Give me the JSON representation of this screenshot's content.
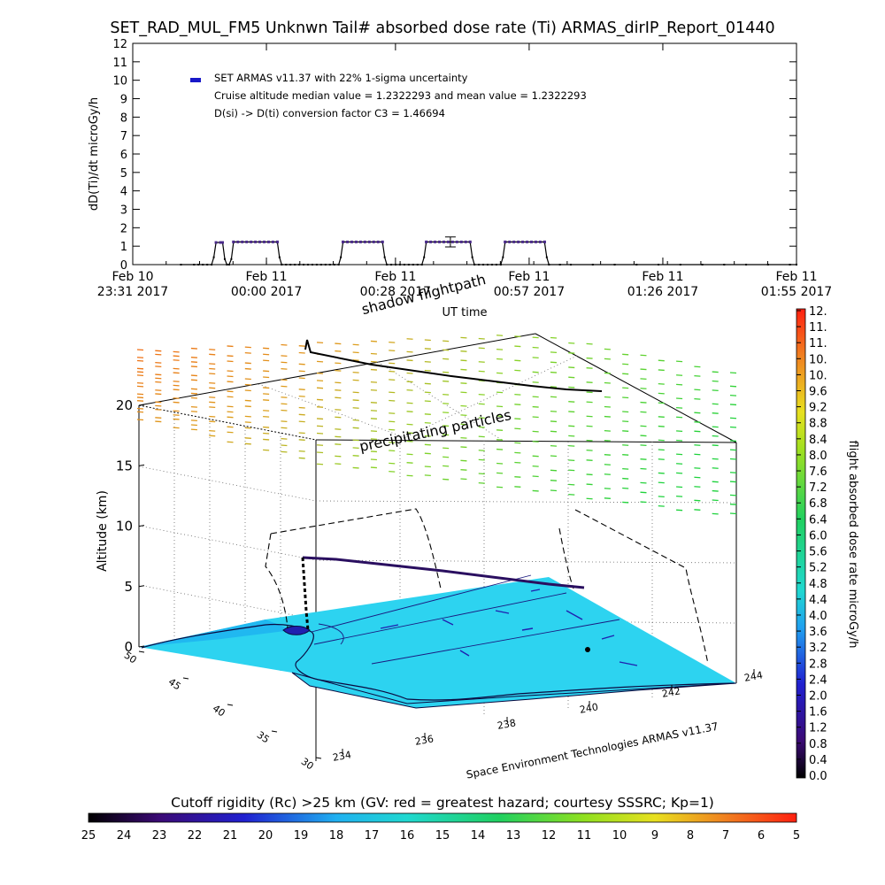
{
  "title": "SET_RAD_MUL_FM5 Unknwn Tail#  absorbed dose rate (Ti) ARMAS_dirIP_Report_01440",
  "chart_data": [
    {
      "type": "line",
      "ylabel": "dD(Ti)/dt microGy/h",
      "xlabel": "UT time",
      "ylim": [
        0,
        12
      ],
      "yticks": [
        "0",
        "1",
        "2",
        "3",
        "4",
        "5",
        "6",
        "7",
        "8",
        "9",
        "10",
        "11",
        "12"
      ],
      "xticks": [
        {
          "day": "Feb 10",
          "time": "23:31 2017"
        },
        {
          "day": "Feb 11",
          "time": "00:00 2017"
        },
        {
          "day": "Feb 11",
          "time": "00:28 2017"
        },
        {
          "day": "Feb 11",
          "time": "00:57 2017"
        },
        {
          "day": "Feb 11",
          "time": "01:26 2017"
        },
        {
          "day": "Feb 11",
          "time": "01:55 2017"
        }
      ],
      "xtick_minutes": [
        0,
        29,
        57,
        86,
        115,
        144
      ],
      "legend": {
        "entry": "SET ARMAS v11.37 with 22% 1-sigma uncertainty",
        "line2": "Cruise altitude median value = 1.2322293 and mean value = 1.2322293",
        "line3": "D(si) -> D(ti) conversion factor C3 = 1.46694",
        "marker_color": "#1818c8"
      },
      "series": [
        {
          "segments": [
            {
              "x": [
                22,
                28,
                30,
                32,
                34,
                36,
                37,
                38,
                40
              ],
              "y": [
                0,
                0,
                0,
                0,
                0,
                0,
                0.4,
                1.2,
                1.2
              ]
            },
            {
              "x": [
                41,
                42,
                43,
                44,
                45,
                46
              ],
              "y": [
                1.2,
                0.3,
                0,
                0,
                0.3,
                1.23
              ]
            },
            {
              "x": [
                46,
                48,
                50,
                52,
                54,
                56,
                58,
                60,
                62,
                64,
                66
              ],
              "y": [
                1.23,
                1.23,
                1.23,
                1.23,
                1.23,
                1.23,
                1.23,
                1.23,
                1.23,
                1.23,
                1.23
              ]
            },
            {
              "x": [
                66,
                67,
                68,
                70,
                72,
                74,
                76,
                78,
                80,
                82,
                84,
                86,
                88,
                90,
                92,
                94,
                95,
                96
              ],
              "y": [
                1.23,
                0.4,
                0,
                0,
                0,
                0,
                0,
                0,
                0,
                0,
                0,
                0,
                0,
                0,
                0,
                0,
                0.4,
                1.23
              ]
            },
            {
              "x": [
                96,
                98,
                100,
                102,
                104,
                106,
                108,
                110,
                112,
                114
              ],
              "y": [
                1.23,
                1.23,
                1.23,
                1.23,
                1.23,
                1.23,
                1.23,
                1.23,
                1.23,
                1.23
              ]
            },
            {
              "x": [
                114,
                115,
                116,
                118,
                120,
                122,
                124,
                126,
                128,
                130,
                132,
                133,
                134
              ],
              "y": [
                1.23,
                0.4,
                0,
                0,
                0,
                0,
                0,
                0,
                0,
                0,
                0,
                0.4,
                1.23
              ]
            },
            {
              "x": [
                134,
                136,
                138,
                140,
                142,
                144,
                146,
                148,
                150,
                152,
                154
              ],
              "y": [
                1.23,
                1.23,
                1.23,
                1.23,
                1.23,
                1.23,
                1.23,
                1.23,
                1.23,
                1.23,
                1.23
              ]
            },
            {
              "x": [
                154,
                155,
                156,
                158,
                160,
                162,
                164,
                166,
                168,
                169,
                170
              ],
              "y": [
                1.23,
                0.4,
                0,
                0,
                0,
                0,
                0,
                0,
                0,
                0.4,
                1.23
              ]
            },
            {
              "x": [
                170,
                172,
                174,
                176,
                178,
                180,
                182,
                184,
                186,
                188
              ],
              "y": [
                1.23,
                1.23,
                1.23,
                1.23,
                1.23,
                1.23,
                1.23,
                1.23,
                1.23,
                1.23
              ]
            },
            {
              "x": [
                188,
                189,
                190,
                195,
                200,
                210,
                220,
                230,
                240,
                250,
                260,
                270,
                280,
                290,
                300,
                303
              ],
              "y": [
                1.23,
                0.4,
                0,
                0,
                0,
                0,
                0,
                0,
                0,
                0,
                0,
                0,
                0,
                0,
                0,
                0
              ]
            }
          ]
        }
      ],
      "errorbar": {
        "x": 145,
        "y": 1.23,
        "err": 0.27
      }
    },
    {
      "type": "scatter",
      "ylabel": "Altitude (km)",
      "zticks": [
        "0",
        "5",
        "10",
        "15",
        "20"
      ],
      "lat_ticks": [
        "50",
        "45",
        "40",
        "35",
        "30"
      ],
      "lon_ticks": [
        "234",
        "236",
        "238",
        "240",
        "242",
        "244"
      ],
      "annotations": [
        "shadow flightpath",
        "precipitating particles"
      ],
      "credit": "Space Environment Technologies ARMAS v11.37",
      "colorbar": {
        "label": "flight absorbed dose rate microGy/h",
        "ticks": [
          "0.0",
          "0.4",
          "0.8",
          "1.2",
          "1.6",
          "2.0",
          "2.4",
          "2.8",
          "3.2",
          "3.6",
          "4.0",
          "4.4",
          "4.8",
          "5.2",
          "5.6",
          "6.0",
          "6.4",
          "6.8",
          "7.2",
          "7.6",
          "8.0",
          "8.4",
          "8.8",
          "9.2",
          "9.6",
          "10.",
          "10.",
          "11.",
          "11.",
          "12."
        ]
      }
    },
    {
      "type": "heatmap",
      "label": "Cutoff rigidity (Rc) >25 km (GV: red = greatest hazard; courtesy SSSRC; Kp=1)",
      "ticks": [
        "25",
        "24",
        "23",
        "22",
        "21",
        "20",
        "19",
        "18",
        "17",
        "16",
        "15",
        "14",
        "13",
        "12",
        "11",
        "10",
        "9",
        "8",
        "7",
        "6",
        "5"
      ]
    }
  ]
}
